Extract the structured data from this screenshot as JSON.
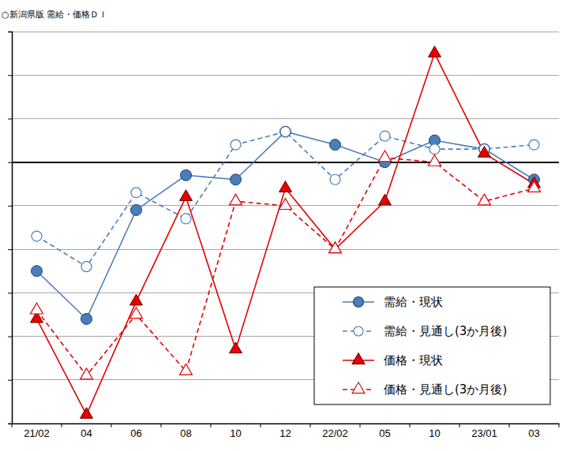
{
  "chart_data": {
    "type": "line",
    "title": "○新潟県版 需給・価格ＤＩ",
    "categories": [
      "21/02",
      "04",
      "06",
      "08",
      "10",
      "12",
      "22/02",
      "05",
      "10",
      "23/01",
      "03"
    ],
    "series": [
      {
        "name": "需給・現状",
        "color": "#4a7ebb",
        "line_style": "solid",
        "marker": "circle",
        "values": [
          -25,
          -36,
          -11,
          -3,
          -4,
          7,
          4,
          0,
          5,
          3,
          -4
        ]
      },
      {
        "name": "需給・見通し(3か月後)",
        "color": "#4a7ebb",
        "line_style": "dashed",
        "marker": "circle-open",
        "values": [
          -17,
          -24,
          -7,
          -13,
          4,
          7,
          -4,
          6,
          3,
          3,
          4
        ]
      },
      {
        "name": "価格・現状",
        "color": "#e60000",
        "line_style": "solid",
        "marker": "triangle",
        "values": [
          -36,
          -58,
          -32,
          -8,
          -43,
          -6,
          -20,
          -9,
          25,
          2,
          -5
        ]
      },
      {
        "name": "価格・見通し(3か月後)",
        "color": "#e60000",
        "line_style": "dashed",
        "marker": "triangle-open",
        "values": [
          -34,
          -49,
          -35,
          -48,
          -9,
          -10,
          -20,
          1,
          0,
          -9,
          -6
        ]
      }
    ],
    "ylim": [
      -60,
      30
    ],
    "yticks": [
      -60,
      -50,
      -40,
      -30,
      -20,
      -10,
      0,
      10,
      20,
      30
    ],
    "grid": true,
    "tick_labels": "x",
    "legend": "lower right"
  }
}
